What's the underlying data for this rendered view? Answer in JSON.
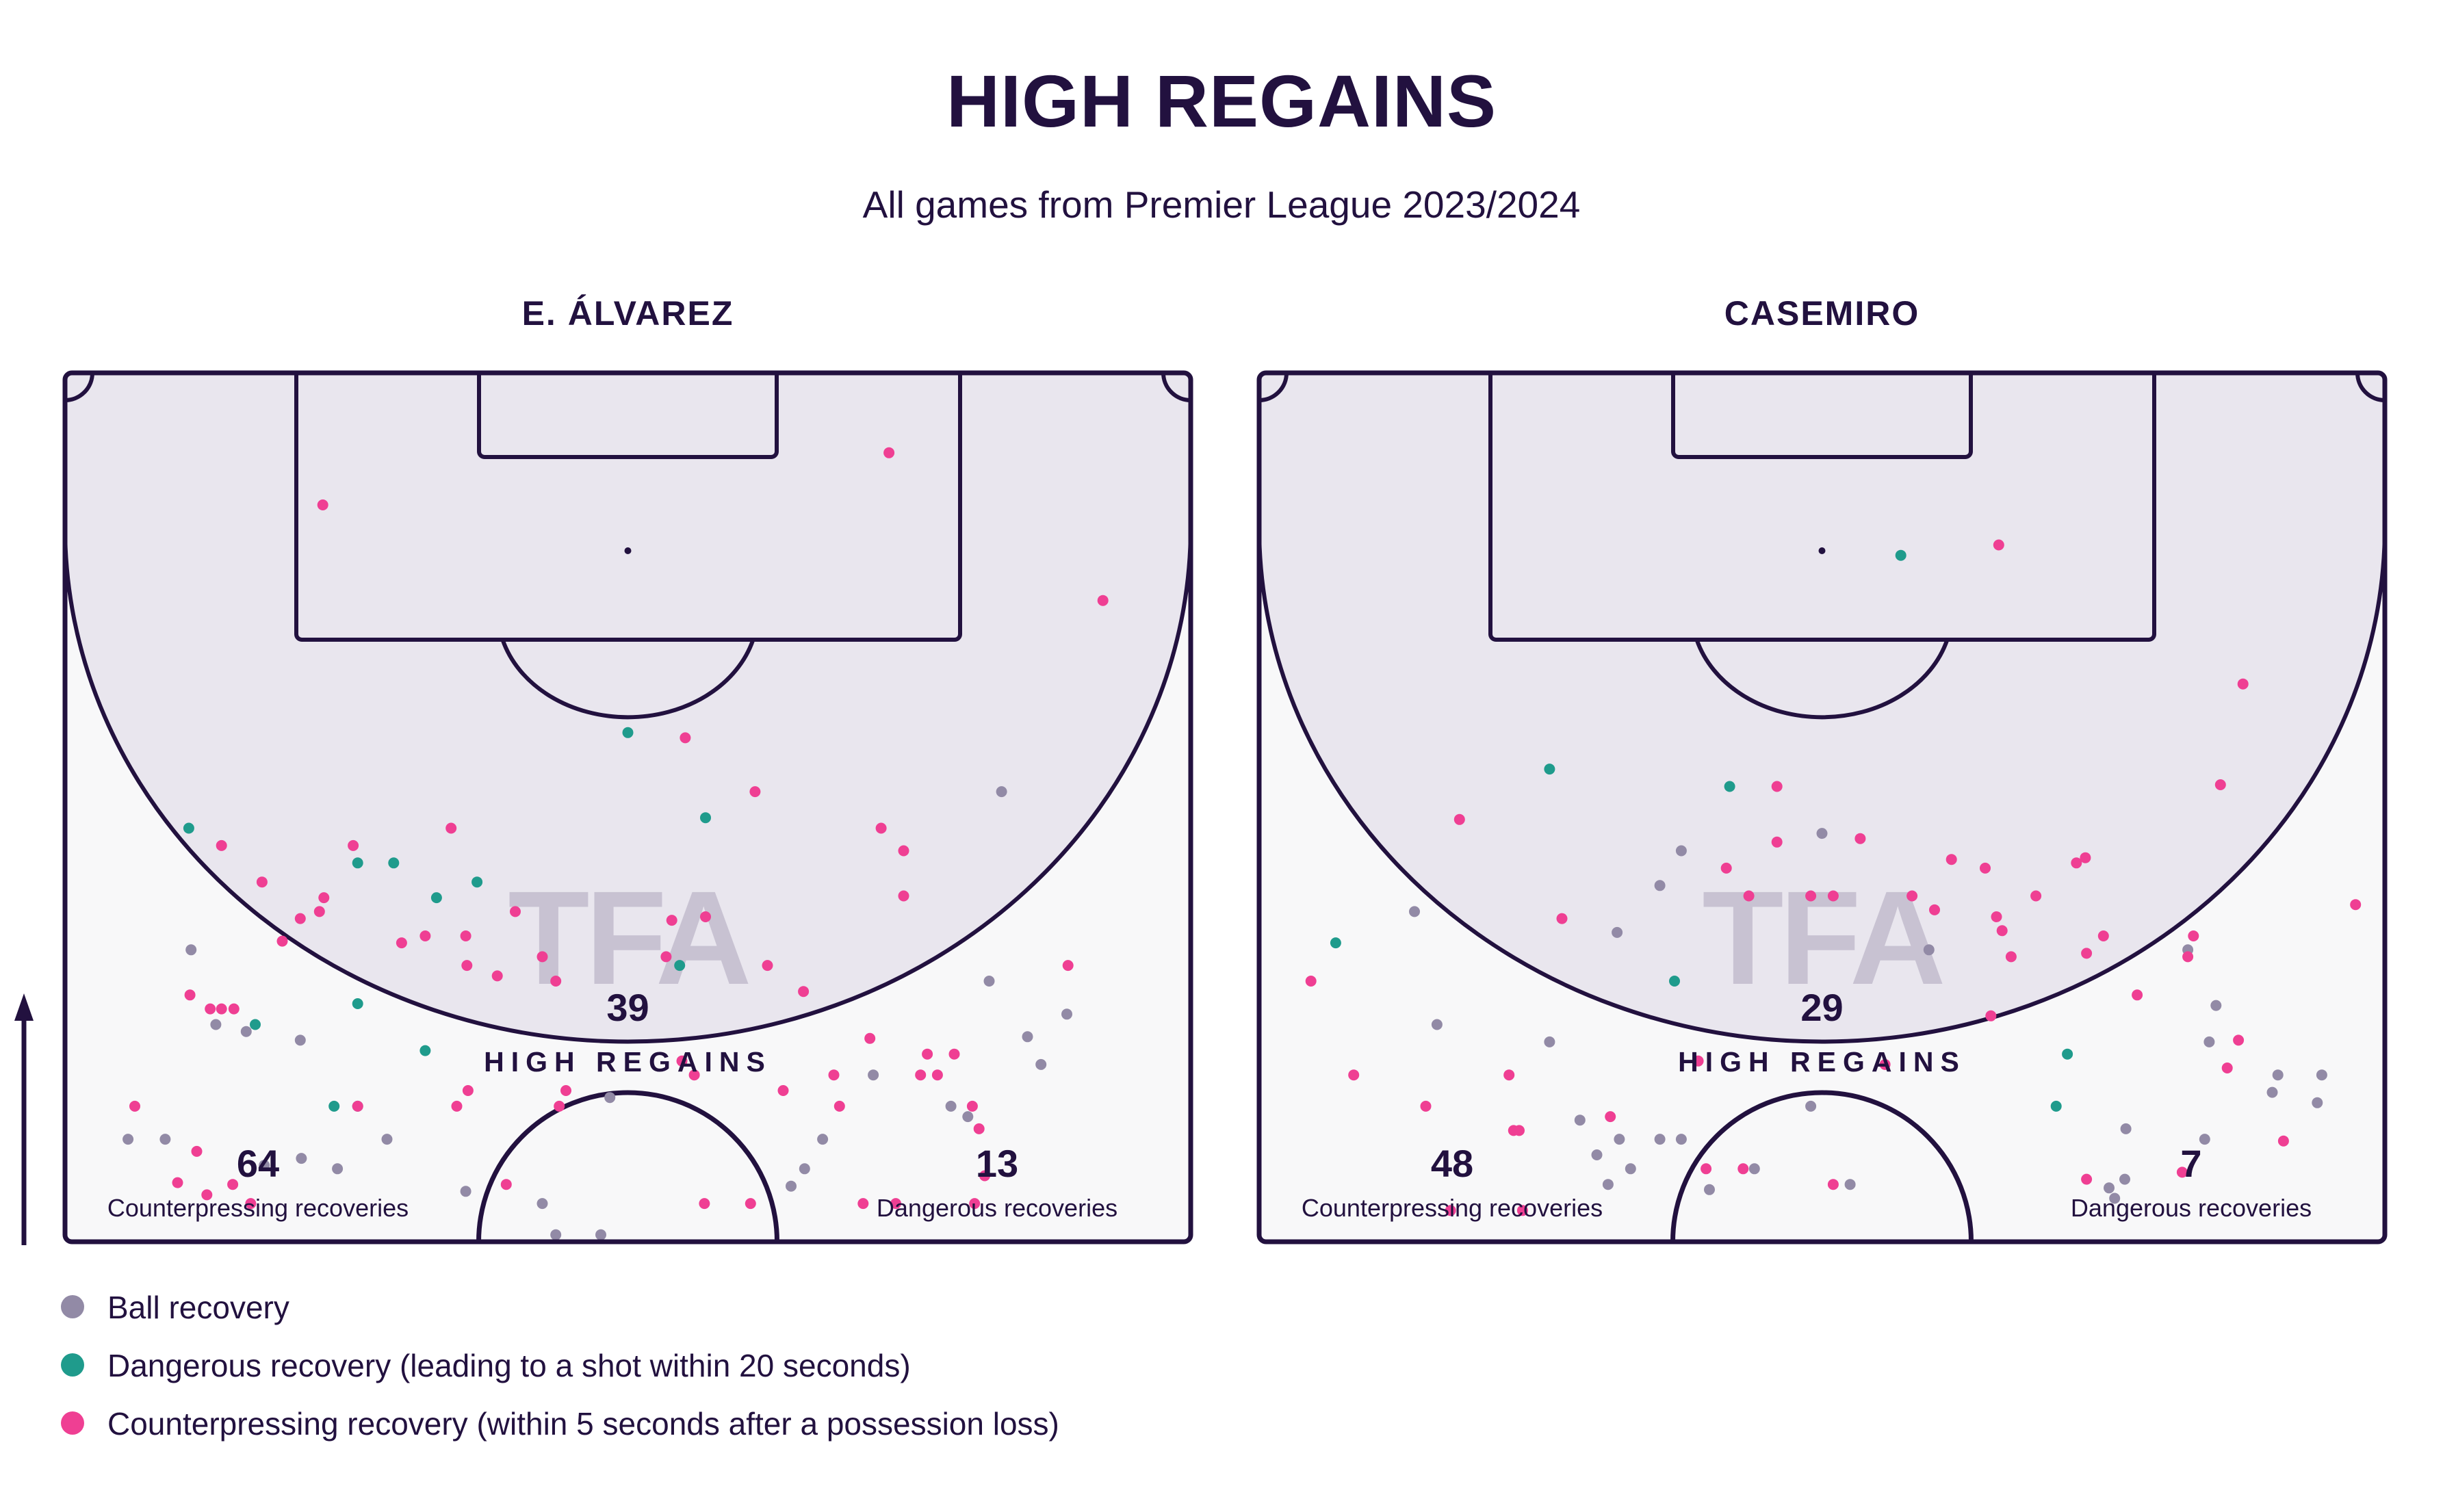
{
  "title": "HIGH REGAINS",
  "subtitle": "All games from Premier League 2023/2024",
  "watermark": "TFA",
  "colors": {
    "ink": "#22113f",
    "zone": "#e9e6ee",
    "pitch_bg": "#f8f8f9",
    "watermark": "#bdb7c9",
    "ball_recovery": "#928aa6",
    "dangerous_recovery": "#1f9b8c",
    "counterpressing_recovery": "#ef3f93"
  },
  "legend": [
    {
      "key": "ball_recovery",
      "label": "Ball recovery"
    },
    {
      "key": "dangerous_recovery",
      "label": "Dangerous recovery (leading to a shot within 20 seconds)"
    },
    {
      "key": "counterpressing_recovery",
      "label": "Counterpressing recovery (within 5 seconds after a possession loss)"
    }
  ],
  "chart_data": [
    {
      "type": "scatter",
      "player": "E. ÁLVAREZ",
      "x_axis": "pitch width (0 = left touchline, 100 = right touchline)",
      "y_axis": "distance from opponent goal line (0 = goal line, 50 = halfway line)",
      "xlim": [
        0,
        100
      ],
      "ylim": [
        0,
        50
      ],
      "high_regains": {
        "value": "39",
        "label": "HIGH REGAINS"
      },
      "counterpressing": {
        "value": "64",
        "label": "Counterpressing recoveries"
      },
      "dangerous": {
        "value": "13",
        "label": "Dangerous recoveries"
      },
      "series": [
        {
          "name": "Ball recovery",
          "key": "ball_recovery",
          "points": [
            [
              83.2,
              24.1
            ],
            [
              82.1,
              35.0
            ],
            [
              89.0,
              36.9
            ],
            [
              85.5,
              38.2
            ],
            [
              86.7,
              39.8
            ],
            [
              71.8,
              40.4
            ],
            [
              78.7,
              42.2
            ],
            [
              80.2,
              42.8
            ],
            [
              67.3,
              44.1
            ],
            [
              65.7,
              45.8
            ],
            [
              64.5,
              46.8
            ],
            [
              48.4,
              41.7
            ],
            [
              42.4,
              47.8
            ],
            [
              35.6,
              47.1
            ],
            [
              43.6,
              49.6
            ],
            [
              47.6,
              49.6
            ],
            [
              28.6,
              44.1
            ],
            [
              24.2,
              45.8
            ],
            [
              20.9,
              38.4
            ],
            [
              16.1,
              37.9
            ],
            [
              13.4,
              37.5
            ],
            [
              11.2,
              33.2
            ],
            [
              8.9,
              44.1
            ],
            [
              21.0,
              45.2
            ],
            [
              17.7,
              45.6
            ],
            [
              5.6,
              44.1
            ]
          ]
        },
        {
          "name": "Dangerous recovery",
          "key": "dangerous_recovery",
          "points": [
            [
              50.0,
              20.7
            ],
            [
              56.9,
              25.6
            ],
            [
              11.0,
              26.2
            ],
            [
              26.0,
              28.2
            ],
            [
              29.2,
              28.2
            ],
            [
              36.6,
              29.3
            ],
            [
              33.0,
              30.2
            ],
            [
              54.6,
              34.1
            ],
            [
              26.0,
              36.3
            ],
            [
              16.9,
              37.5
            ],
            [
              32.0,
              39.0
            ],
            [
              23.9,
              42.2
            ],
            [
              26.0,
              42.2
            ]
          ]
        },
        {
          "name": "Counterpressing recovery",
          "key": "counterpressing_recovery",
          "points": [
            [
              73.2,
              4.6
            ],
            [
              22.9,
              7.6
            ],
            [
              92.2,
              13.1
            ],
            [
              55.1,
              21.0
            ],
            [
              61.3,
              24.1
            ],
            [
              72.5,
              26.2
            ],
            [
              34.3,
              26.2
            ],
            [
              13.9,
              27.2
            ],
            [
              25.6,
              27.2
            ],
            [
              74.5,
              27.5
            ],
            [
              17.5,
              29.3
            ],
            [
              74.5,
              30.1
            ],
            [
              23.0,
              30.2
            ],
            [
              22.6,
              31.0
            ],
            [
              56.9,
              31.3
            ],
            [
              40.0,
              31.0
            ],
            [
              53.9,
              31.5
            ],
            [
              20.9,
              31.4
            ],
            [
              32.0,
              32.4
            ],
            [
              35.6,
              32.4
            ],
            [
              29.9,
              32.8
            ],
            [
              42.4,
              33.6
            ],
            [
              53.4,
              33.6
            ],
            [
              19.3,
              32.7
            ],
            [
              35.7,
              34.1
            ],
            [
              62.4,
              34.1
            ],
            [
              89.1,
              34.1
            ],
            [
              38.4,
              34.7
            ],
            [
              43.6,
              35.0
            ],
            [
              65.6,
              35.6
            ],
            [
              11.1,
              35.8
            ],
            [
              12.9,
              36.6
            ],
            [
              13.9,
              36.6
            ],
            [
              15.0,
              36.6
            ],
            [
              71.5,
              38.3
            ],
            [
              76.6,
              39.2
            ],
            [
              79.0,
              39.2
            ],
            [
              54.8,
              39.6
            ],
            [
              77.5,
              40.4
            ],
            [
              76.0,
              40.4
            ],
            [
              68.3,
              40.4
            ],
            [
              55.9,
              40.4
            ],
            [
              63.8,
              41.3
            ],
            [
              44.5,
              41.3
            ],
            [
              35.8,
              41.3
            ],
            [
              6.2,
              42.2
            ],
            [
              26.0,
              42.2
            ],
            [
              34.8,
              42.2
            ],
            [
              43.9,
              42.2
            ],
            [
              68.8,
              42.2
            ],
            [
              80.6,
              42.2
            ],
            [
              81.2,
              43.5
            ],
            [
              10.0,
              46.6
            ],
            [
              14.9,
              46.7
            ],
            [
              16.5,
              47.8
            ],
            [
              12.6,
              47.3
            ],
            [
              39.2,
              46.7
            ],
            [
              56.8,
              47.8
            ],
            [
              70.9,
              47.8
            ],
            [
              73.8,
              47.8
            ],
            [
              80.8,
              47.8
            ],
            [
              60.9,
              47.8
            ],
            [
              11.7,
              44.8
            ],
            [
              81.7,
              46.2
            ]
          ]
        }
      ]
    },
    {
      "type": "scatter",
      "player": "CASEMIRO",
      "x_axis": "pitch width (0 = left touchline, 100 = right touchline)",
      "y_axis": "distance from opponent goal line (0 = goal line, 50 = halfway line)",
      "xlim": [
        0,
        100
      ],
      "ylim": [
        0,
        50
      ],
      "high_regains": {
        "value": "29",
        "label": "HIGH REGAINS"
      },
      "counterpressing": {
        "value": "48",
        "label": "Counterpressing recoveries"
      },
      "dangerous": {
        "value": "7",
        "label": "Dangerous recoveries"
      },
      "series": [
        {
          "name": "Ball recovery",
          "key": "ball_recovery",
          "points": [
            [
              50.0,
              26.5
            ],
            [
              37.5,
              27.5
            ],
            [
              35.6,
              29.5
            ],
            [
              13.8,
              31.0
            ],
            [
              31.8,
              32.2
            ],
            [
              59.5,
              33.2
            ],
            [
              82.5,
              33.2
            ],
            [
              85.0,
              36.4
            ],
            [
              15.8,
              37.5
            ],
            [
              25.8,
              38.5
            ],
            [
              84.4,
              38.5
            ],
            [
              90.5,
              40.4
            ],
            [
              94.4,
              40.4
            ],
            [
              32.0,
              44.1
            ],
            [
              35.6,
              44.1
            ],
            [
              49.0,
              42.2
            ],
            [
              37.5,
              44.1
            ],
            [
              30.0,
              45.0
            ],
            [
              31.0,
              46.7
            ],
            [
              33.0,
              45.8
            ],
            [
              40.0,
              47.0
            ],
            [
              44.0,
              45.8
            ],
            [
              52.5,
              46.7
            ],
            [
              75.5,
              46.9
            ],
            [
              77.0,
              43.5
            ],
            [
              76.0,
              47.5
            ],
            [
              76.9,
              46.4
            ],
            [
              84.0,
              44.1
            ],
            [
              90.0,
              41.4
            ],
            [
              94.0,
              42.0
            ],
            [
              28.5,
              43.0
            ]
          ]
        },
        {
          "name": "Dangerous recovery",
          "key": "dangerous_recovery",
          "points": [
            [
              57.0,
              10.5
            ],
            [
              25.8,
              22.8
            ],
            [
              41.8,
              23.8
            ],
            [
              6.8,
              32.8
            ],
            [
              36.9,
              35.0
            ],
            [
              71.8,
              39.2
            ],
            [
              70.8,
              42.2
            ]
          ]
        },
        {
          "name": "Counterpressing recovery",
          "key": "counterpressing_recovery",
          "points": [
            [
              65.7,
              9.9
            ],
            [
              87.4,
              17.9
            ],
            [
              17.8,
              25.7
            ],
            [
              85.4,
              23.7
            ],
            [
              46.0,
              23.8
            ],
            [
              53.4,
              26.8
            ],
            [
              46.0,
              27.0
            ],
            [
              61.5,
              28.0
            ],
            [
              64.5,
              28.5
            ],
            [
              41.5,
              28.5
            ],
            [
              72.6,
              28.2
            ],
            [
              43.5,
              30.1
            ],
            [
              49.0,
              30.1
            ],
            [
              73.4,
              27.9
            ],
            [
              51.0,
              30.1
            ],
            [
              58.0,
              30.1
            ],
            [
              69.0,
              30.1
            ],
            [
              97.4,
              30.6
            ],
            [
              65.5,
              31.3
            ],
            [
              26.9,
              31.4
            ],
            [
              60.0,
              30.9
            ],
            [
              75.0,
              32.4
            ],
            [
              66.8,
              33.6
            ],
            [
              83.0,
              32.4
            ],
            [
              73.5,
              33.4
            ],
            [
              82.5,
              33.6
            ],
            [
              78.0,
              35.8
            ],
            [
              87.0,
              38.4
            ],
            [
              66.0,
              32.1
            ],
            [
              86.0,
              40.0
            ],
            [
              4.6,
              35.0
            ],
            [
              65.0,
              37.0
            ],
            [
              39.0,
              39.6
            ],
            [
              55.6,
              39.8
            ],
            [
              8.4,
              40.4
            ],
            [
              22.2,
              40.4
            ],
            [
              14.8,
              42.2
            ],
            [
              31.2,
              42.8
            ],
            [
              22.6,
              43.6
            ],
            [
              43.0,
              45.8
            ],
            [
              51.0,
              46.7
            ],
            [
              73.5,
              46.4
            ],
            [
              82.0,
              46.0
            ],
            [
              91.0,
              44.2
            ],
            [
              23.1,
              43.6
            ],
            [
              17.0,
              48.2
            ],
            [
              23.4,
              48.2
            ],
            [
              39.7,
              45.8
            ]
          ]
        }
      ]
    }
  ]
}
